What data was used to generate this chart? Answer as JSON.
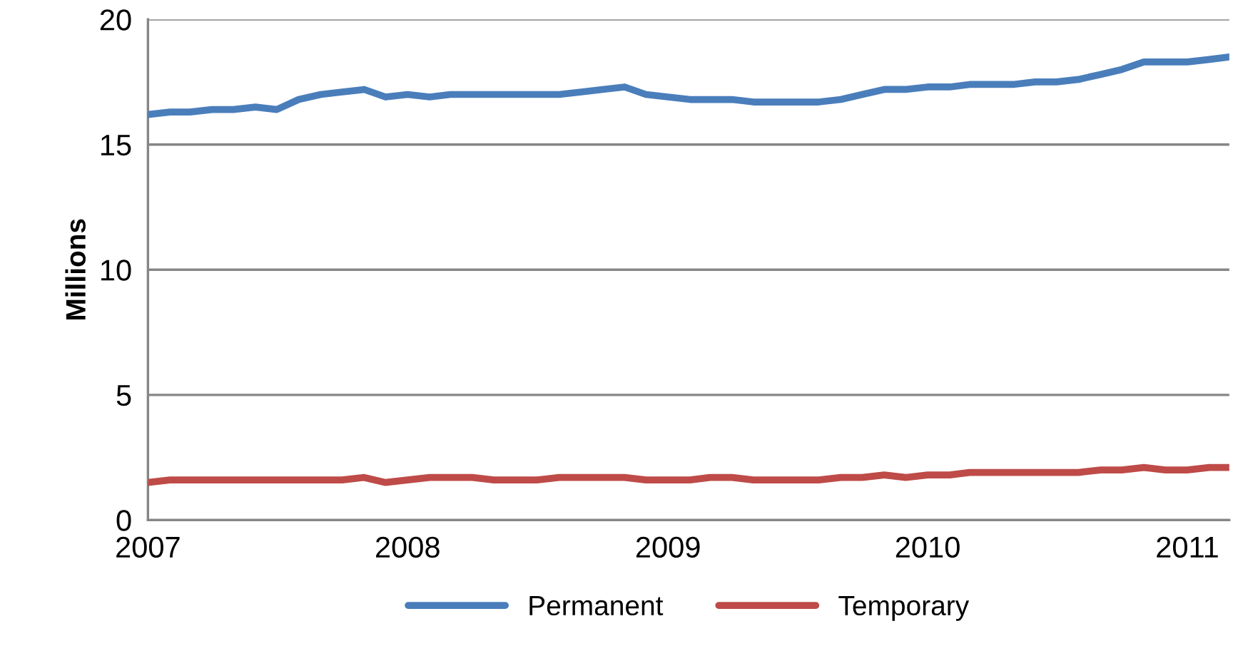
{
  "chart_data": {
    "type": "line",
    "ylabel": "Millions",
    "x": [
      "2007-01",
      "2007-02",
      "2007-03",
      "2007-04",
      "2007-05",
      "2007-06",
      "2007-07",
      "2007-08",
      "2007-09",
      "2007-10",
      "2007-11",
      "2007-12",
      "2008-01",
      "2008-02",
      "2008-03",
      "2008-04",
      "2008-05",
      "2008-06",
      "2008-07",
      "2008-08",
      "2008-09",
      "2008-10",
      "2008-11",
      "2008-12",
      "2009-01",
      "2009-02",
      "2009-03",
      "2009-04",
      "2009-05",
      "2009-06",
      "2009-07",
      "2009-08",
      "2009-09",
      "2009-10",
      "2009-11",
      "2009-12",
      "2010-01",
      "2010-02",
      "2010-03",
      "2010-04",
      "2010-05",
      "2010-06",
      "2010-07",
      "2010-08",
      "2010-09",
      "2010-10",
      "2010-11",
      "2010-12",
      "2011-01",
      "2011-02",
      "2011-03"
    ],
    "series": [
      {
        "name": "Permanent",
        "color": "#4a7ebb",
        "values": [
          16.2,
          16.3,
          16.3,
          16.4,
          16.4,
          16.5,
          16.4,
          16.8,
          17.0,
          17.1,
          17.2,
          16.9,
          17.0,
          16.9,
          17.0,
          17.0,
          17.0,
          17.0,
          17.0,
          17.0,
          17.1,
          17.2,
          17.3,
          17.0,
          16.9,
          16.8,
          16.8,
          16.8,
          16.7,
          16.7,
          16.7,
          16.7,
          16.8,
          17.0,
          17.2,
          17.2,
          17.3,
          17.3,
          17.4,
          17.4,
          17.4,
          17.5,
          17.5,
          17.6,
          17.8,
          18.0,
          18.3,
          18.3,
          18.3,
          18.4,
          18.5
        ]
      },
      {
        "name": "Temporary",
        "color": "#be4b48",
        "values": [
          1.5,
          1.6,
          1.6,
          1.6,
          1.6,
          1.6,
          1.6,
          1.6,
          1.6,
          1.6,
          1.7,
          1.5,
          1.6,
          1.7,
          1.7,
          1.7,
          1.6,
          1.6,
          1.6,
          1.7,
          1.7,
          1.7,
          1.7,
          1.6,
          1.6,
          1.6,
          1.7,
          1.7,
          1.6,
          1.6,
          1.6,
          1.6,
          1.7,
          1.7,
          1.8,
          1.7,
          1.8,
          1.8,
          1.9,
          1.9,
          1.9,
          1.9,
          1.9,
          1.9,
          2.0,
          2.0,
          2.1,
          2.0,
          2.0,
          2.1,
          2.1
        ]
      }
    ],
    "xlim": [
      "2007-01",
      "2011-03"
    ],
    "xticks": [
      {
        "value": "2007-01",
        "label": "2007"
      },
      {
        "value": "2008-01",
        "label": "2008"
      },
      {
        "value": "2009-01",
        "label": "2009"
      },
      {
        "value": "2010-01",
        "label": "2010"
      },
      {
        "value": "2011-01",
        "label": "2011"
      }
    ],
    "ylim": [
      0,
      20
    ],
    "yticks": [
      0,
      5,
      10,
      15,
      20
    ],
    "grid": "y",
    "legend": "bottom",
    "line_style": "solid",
    "marker": "none"
  }
}
